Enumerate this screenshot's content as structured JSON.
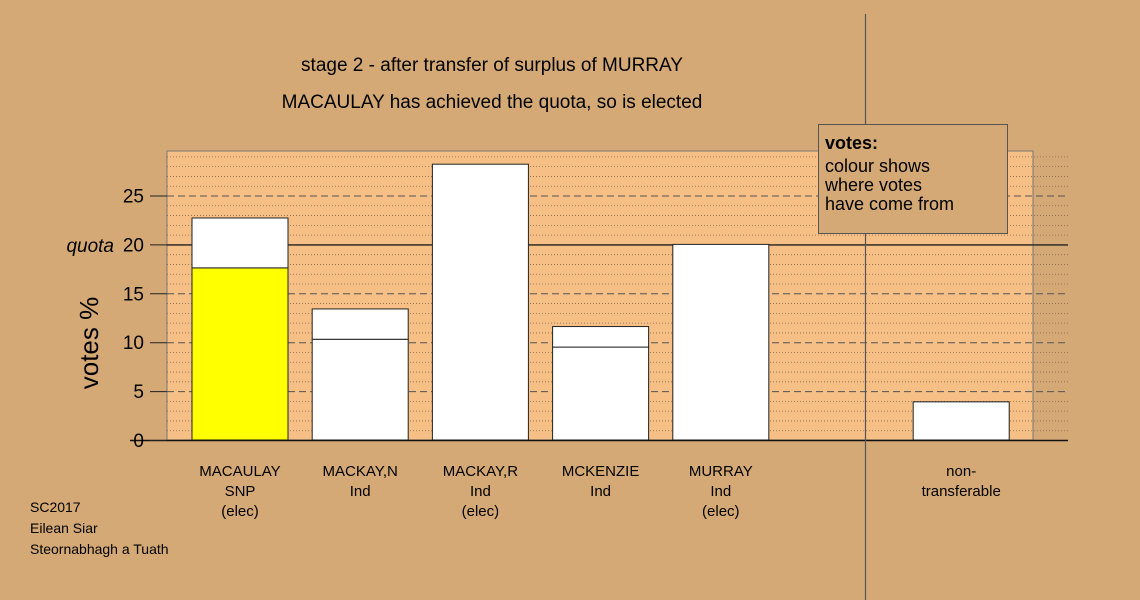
{
  "chart_data": {
    "type": "bar",
    "title": "stage 2 - after transfer of surplus of MURRAY",
    "subtitle": "MACAULAY has achieved the quota, so is elected",
    "ylabel": "votes %",
    "ylim": [
      0,
      29.5
    ],
    "yticks": [
      0,
      5,
      10,
      15,
      20,
      25
    ],
    "quota": 20,
    "quota_label": "quota",
    "categories": [
      {
        "lines": [
          "MACAULAY",
          "SNP",
          "(elec)"
        ],
        "slot": 0,
        "base": 17.6,
        "total": 22.7,
        "base_color": "#ffff00"
      },
      {
        "lines": [
          "MACKAY,N",
          "Ind"
        ],
        "slot": 1,
        "base": 10.3,
        "total": 13.4,
        "base_color": "#ffffff"
      },
      {
        "lines": [
          "MACKAY,R",
          "Ind",
          "(elec)"
        ],
        "slot": 2,
        "base": 28.2,
        "total": 28.2,
        "base_color": "#ffffff"
      },
      {
        "lines": [
          "MCKENZIE",
          "Ind"
        ],
        "slot": 3,
        "base": 9.5,
        "total": 11.6,
        "base_color": "#ffffff"
      },
      {
        "lines": [
          "MURRAY",
          "Ind",
          "(elec)"
        ],
        "slot": 4,
        "base": 20.0,
        "total": 20.0,
        "base_color": "#ffffff"
      },
      {
        "lines": [
          "non-",
          "transferable"
        ],
        "slot": 6,
        "base": 3.9,
        "total": 3.9,
        "base_color": "#ffffff"
      }
    ],
    "colors": {
      "background": "#d4a976",
      "plot_area": "#f5bf85"
    },
    "grid": "dashed",
    "legend_placement": "top-right"
  },
  "legend": {
    "title": "votes:",
    "lines": [
      "colour shows",
      "where votes",
      "have come from"
    ]
  },
  "footer": {
    "lines": [
      "SC2017",
      "Eilean Siar",
      "Steornabhagh a Tuath"
    ]
  }
}
